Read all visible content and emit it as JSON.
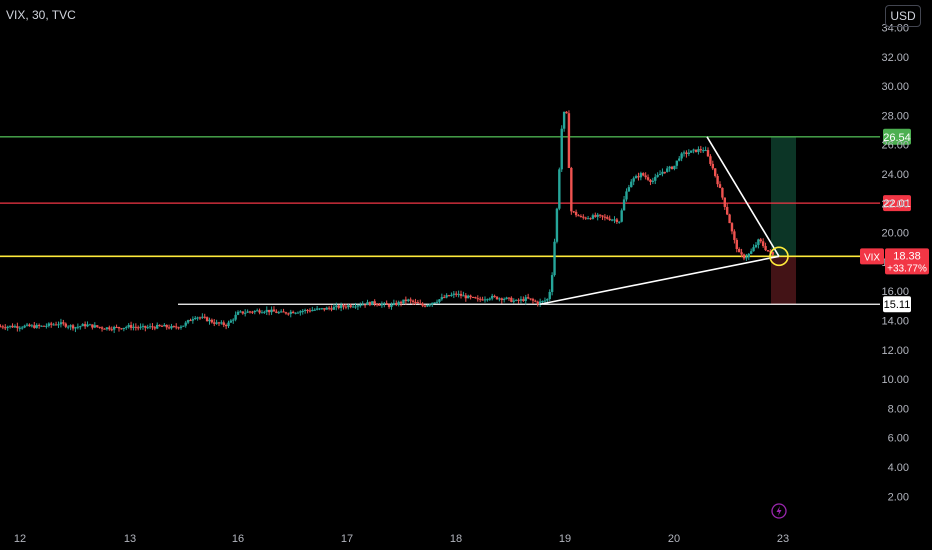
{
  "header": {
    "symbol": "VIX, 30, TVC",
    "currency": "USD"
  },
  "colors": {
    "up": "#26a69a",
    "down": "#ef5350",
    "bg": "#000000",
    "green_line": "#4caf50",
    "red_line": "#f23645",
    "yellow_line": "#ffeb3b",
    "white_line": "#ffffff",
    "price_badge": "#f23645"
  },
  "price_tag": {
    "label": "VIX",
    "price": "18.38",
    "change": "+33.77%"
  },
  "chart_data": {
    "type": "candlestick",
    "y_ticks": [
      "2.00",
      "4.00",
      "6.00",
      "8.00",
      "10.00",
      "12.00",
      "14.00",
      "16.00",
      "18.00",
      "20.00",
      "22.00",
      "24.00",
      "26.00",
      "28.00",
      "30.00",
      "32.00",
      "34.00"
    ],
    "y_tick_values": [
      2,
      4,
      6,
      8,
      10,
      12,
      14,
      16,
      18,
      20,
      22,
      24,
      26,
      28,
      30,
      32,
      34
    ],
    "x_ticks": [
      {
        "label": "12",
        "t": 0
      },
      {
        "label": "13",
        "t": 1
      },
      {
        "label": "16",
        "t": 2
      },
      {
        "label": "17",
        "t": 3
      },
      {
        "label": "18",
        "t": 4
      },
      {
        "label": "19",
        "t": 5
      },
      {
        "label": "20",
        "t": 6
      },
      {
        "label": "23",
        "t": 7
      }
    ],
    "horizontal_levels": [
      {
        "value": 26.54,
        "label": "26.54",
        "color": "#4caf50"
      },
      {
        "value": 22.01,
        "label": "22.01",
        "color": "#f23645"
      },
      {
        "value": 18.38,
        "label": "18.38",
        "color": "#ffeb3b"
      },
      {
        "value": 15.11,
        "label": "15.11",
        "color": "#ffffff"
      }
    ],
    "price_path": [
      [
        -0.2,
        13.6
      ],
      [
        0.0,
        13.6
      ],
      [
        0.2,
        13.6
      ],
      [
        0.35,
        13.8
      ],
      [
        0.5,
        13.55
      ],
      [
        0.6,
        13.7
      ],
      [
        0.75,
        13.5
      ],
      [
        0.9,
        13.5
      ],
      [
        1.0,
        13.6
      ],
      [
        1.1,
        13.5
      ],
      [
        1.3,
        13.6
      ],
      [
        1.4,
        13.5
      ],
      [
        1.5,
        13.7
      ],
      [
        1.55,
        14.0
      ],
      [
        1.6,
        14.3
      ],
      [
        1.7,
        14.1
      ],
      [
        1.8,
        13.8
      ],
      [
        1.9,
        13.7
      ],
      [
        2.0,
        14.5
      ],
      [
        2.1,
        14.6
      ],
      [
        2.25,
        14.7
      ],
      [
        2.4,
        14.5
      ],
      [
        2.5,
        14.6
      ],
      [
        2.65,
        14.7
      ],
      [
        2.8,
        14.8
      ],
      [
        2.9,
        14.9
      ],
      [
        3.0,
        15.0
      ],
      [
        3.1,
        15.1
      ],
      [
        3.25,
        15.2
      ],
      [
        3.4,
        15.0
      ],
      [
        3.55,
        15.4
      ],
      [
        3.7,
        15.0
      ],
      [
        3.8,
        15.3
      ],
      [
        3.9,
        15.6
      ],
      [
        4.0,
        15.8
      ],
      [
        4.1,
        15.6
      ],
      [
        4.2,
        15.4
      ],
      [
        4.3,
        15.6
      ],
      [
        4.45,
        15.5
      ],
      [
        4.55,
        15.3
      ],
      [
        4.65,
        15.5
      ],
      [
        4.75,
        15.2
      ],
      [
        4.8,
        15.3
      ],
      [
        4.85,
        15.5
      ],
      [
        4.88,
        17.0
      ],
      [
        4.9,
        19.0
      ],
      [
        4.93,
        22.0
      ],
      [
        4.96,
        26.0
      ],
      [
        4.98,
        28.2
      ],
      [
        5.0,
        28.1
      ],
      [
        5.02,
        28.0
      ],
      [
        5.05,
        21.5
      ],
      [
        5.15,
        21.0
      ],
      [
        5.3,
        21.1
      ],
      [
        5.45,
        20.9
      ],
      [
        5.5,
        20.8
      ],
      [
        5.55,
        22.5
      ],
      [
        5.6,
        23.5
      ],
      [
        5.7,
        24.0
      ],
      [
        5.8,
        23.5
      ],
      [
        5.9,
        24.2
      ],
      [
        6.0,
        24.5
      ],
      [
        6.05,
        25.2
      ],
      [
        6.1,
        25.4
      ],
      [
        6.2,
        25.6
      ],
      [
        6.28,
        25.7
      ],
      [
        6.35,
        24.5
      ],
      [
        6.42,
        23.0
      ],
      [
        6.5,
        21.0
      ],
      [
        6.55,
        19.5
      ],
      [
        6.6,
        18.5
      ],
      [
        6.65,
        18.3
      ],
      [
        6.7,
        18.6
      ],
      [
        6.78,
        19.5
      ],
      [
        6.85,
        18.8
      ],
      [
        6.92,
        18.38
      ]
    ]
  }
}
